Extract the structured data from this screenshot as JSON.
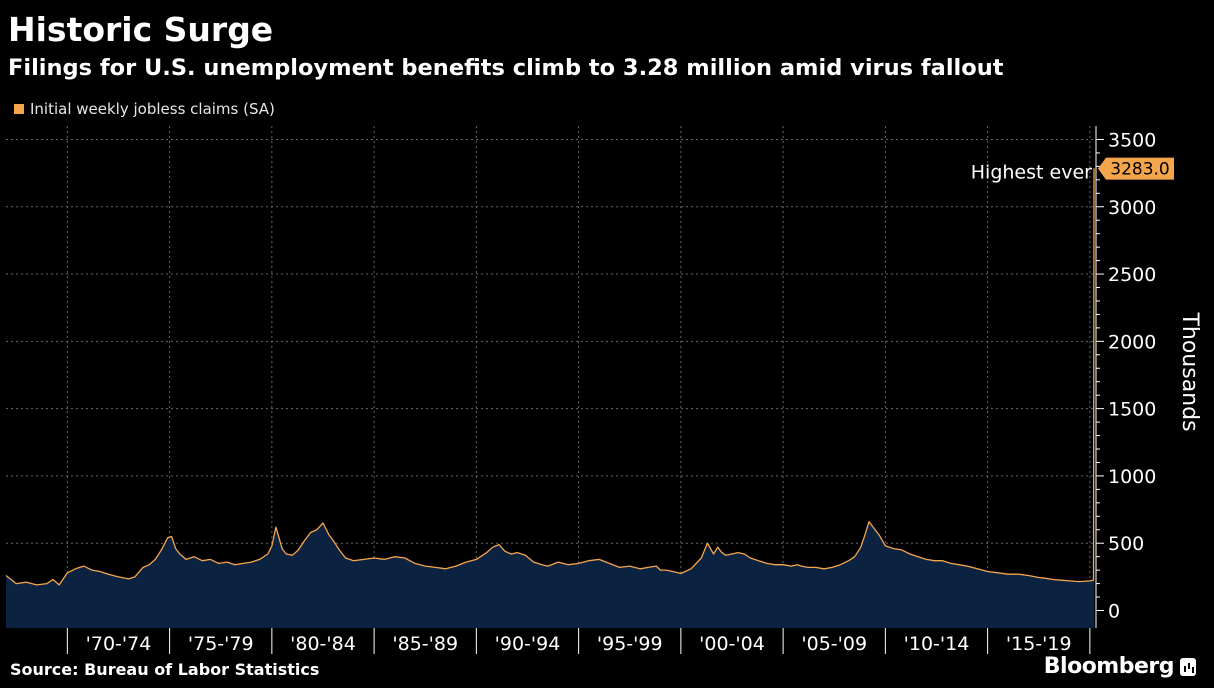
{
  "colors": {
    "background": "#000000",
    "line": "#f5a54b",
    "area": "#0b2341",
    "grid": "#666666"
  },
  "brand": {
    "name": "Bloomberg",
    "icon": "bloomberg-chart-icon"
  },
  "chart_data": {
    "type": "area",
    "title": "Historic Surge",
    "subtitle": "Filings for U.S. unemployment benefits climb to 3.28 million amid virus fallout",
    "source": "Source: Bureau of Labor Statistics",
    "ylabel": "Thousands",
    "ylim": [
      -130,
      3600
    ],
    "yticks": [
      0,
      500,
      1000,
      1500,
      2000,
      2500,
      3000,
      3500
    ],
    "xlim": [
      1967,
      2020.3
    ],
    "x_tick_labels": [
      {
        "label": "'70-'74",
        "start": 1970,
        "end": 1975
      },
      {
        "label": "'75-'79",
        "start": 1975,
        "end": 1980
      },
      {
        "label": "'80-'84",
        "start": 1980,
        "end": 1985
      },
      {
        "label": "'85-'89",
        "start": 1985,
        "end": 1990
      },
      {
        "label": "'90-'94",
        "start": 1990,
        "end": 1995
      },
      {
        "label": "'95-'99",
        "start": 1995,
        "end": 2000
      },
      {
        "label": "'00-'04",
        "start": 2000,
        "end": 2005
      },
      {
        "label": "'05-'09",
        "start": 2005,
        "end": 2010
      },
      {
        "label": "'10-'14",
        "start": 2010,
        "end": 2015
      },
      {
        "label": "'15-'19",
        "start": 2015,
        "end": 2020
      }
    ],
    "grid": true,
    "legend_position": "top-left",
    "series": [
      {
        "name": "Initial weekly jobless claims (SA)",
        "x": [
          1967.0,
          1967.5,
          1968.0,
          1968.5,
          1969.0,
          1969.3,
          1969.6,
          1970.0,
          1970.4,
          1970.8,
          1971.2,
          1971.6,
          1972.0,
          1972.5,
          1973.0,
          1973.3,
          1973.7,
          1974.0,
          1974.3,
          1974.6,
          1974.9,
          1975.1,
          1975.3,
          1975.5,
          1975.8,
          1976.2,
          1976.6,
          1977.0,
          1977.4,
          1977.8,
          1978.2,
          1978.6,
          1979.0,
          1979.4,
          1979.8,
          1980.0,
          1980.2,
          1980.5,
          1980.7,
          1981.0,
          1981.3,
          1981.6,
          1981.9,
          1982.2,
          1982.5,
          1982.8,
          1983.0,
          1983.3,
          1983.6,
          1984.0,
          1984.5,
          1985.0,
          1985.5,
          1986.0,
          1986.5,
          1987.0,
          1987.5,
          1988.0,
          1988.5,
          1989.0,
          1989.5,
          1990.0,
          1990.5,
          1990.8,
          1991.1,
          1991.4,
          1991.7,
          1992.0,
          1992.4,
          1992.8,
          1993.0,
          1993.2,
          1993.5,
          1994.0,
          1994.5,
          1995.0,
          1995.5,
          1996.0,
          1996.5,
          1997.0,
          1997.5,
          1998.0,
          1998.4,
          1998.8,
          1999.0,
          1999.3,
          1999.6,
          2000.0,
          2000.5,
          2001.0,
          2001.3,
          2001.6,
          2001.8,
          2002.0,
          2002.2,
          2002.5,
          2002.8,
          2003.1,
          2003.4,
          2003.8,
          2004.2,
          2004.6,
          2005.0,
          2005.4,
          2005.7,
          2005.9,
          2006.2,
          2006.6,
          2007.0,
          2007.4,
          2007.8,
          2008.2,
          2008.5,
          2008.8,
          2009.0,
          2009.2,
          2009.4,
          2009.7,
          2010.0,
          2010.4,
          2010.8,
          2011.2,
          2011.6,
          2012.0,
          2012.4,
          2012.8,
          2013.2,
          2013.6,
          2014.0,
          2014.5,
          2015.0,
          2015.5,
          2016.0,
          2016.5,
          2017.0,
          2017.5,
          2017.8,
          2018.2,
          2018.6,
          2019.0,
          2019.5,
          2020.0,
          2020.18,
          2020.2,
          2020.22
        ],
        "values": [
          260,
          200,
          210,
          190,
          200,
          230,
          190,
          280,
          310,
          330,
          300,
          290,
          270,
          250,
          235,
          250,
          320,
          340,
          380,
          450,
          540,
          550,
          460,
          420,
          380,
          400,
          370,
          380,
          350,
          360,
          340,
          350,
          360,
          380,
          420,
          480,
          620,
          460,
          420,
          410,
          450,
          520,
          580,
          600,
          650,
          560,
          520,
          450,
          390,
          370,
          380,
          390,
          380,
          400,
          390,
          350,
          330,
          320,
          310,
          330,
          360,
          380,
          430,
          470,
          490,
          440,
          420,
          430,
          410,
          360,
          350,
          340,
          330,
          360,
          340,
          350,
          370,
          380,
          350,
          320,
          330,
          310,
          320,
          330,
          300,
          300,
          290,
          275,
          310,
          390,
          500,
          420,
          470,
          430,
          410,
          420,
          430,
          420,
          390,
          370,
          350,
          340,
          340,
          330,
          340,
          330,
          320,
          320,
          310,
          320,
          340,
          370,
          400,
          470,
          560,
          660,
          620,
          560,
          480,
          460,
          450,
          420,
          400,
          380,
          370,
          370,
          350,
          340,
          330,
          310,
          290,
          280,
          270,
          270,
          260,
          245,
          240,
          230,
          225,
          220,
          215,
          220,
          225,
          3283,
          3283
        ]
      }
    ],
    "annotation": {
      "text": "Highest ever",
      "x": 2020.2,
      "y": 3283
    },
    "last_value_label": "3283.0"
  }
}
